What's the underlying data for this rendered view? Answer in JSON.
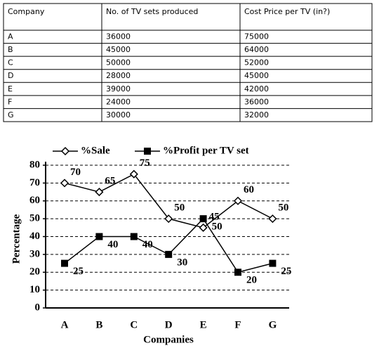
{
  "table": {
    "header": [
      "Company",
      "No. of TV sets produced",
      "Cost Price per TV (in?)"
    ],
    "rows": [
      [
        "A",
        "36000",
        "75000"
      ],
      [
        "B",
        "45000",
        "64000"
      ],
      [
        "C",
        "50000",
        "52000"
      ],
      [
        "D",
        "28000",
        "45000"
      ],
      [
        "E",
        "39000",
        "42000"
      ],
      [
        "F",
        "24000",
        "36000"
      ],
      [
        "G",
        "30000",
        "32000"
      ]
    ]
  },
  "chart_data": {
    "type": "line",
    "x_label": "Companies",
    "y_label": "Percentage",
    "categories": [
      "A",
      "B",
      "C",
      "D",
      "E",
      "F",
      "G"
    ],
    "series": [
      {
        "name": "%Sale",
        "color": "#000000",
        "marker": "diamond",
        "values": [
          70,
          65,
          75,
          50,
          45,
          60,
          50
        ]
      },
      {
        "name": "%Profit per TV set",
        "color": "#000000",
        "marker": "square",
        "values": [
          25,
          40,
          40,
          30,
          50,
          20,
          25
        ]
      }
    ],
    "ylim": [
      0,
      80
    ],
    "yticks": [
      0,
      10,
      20,
      30,
      40,
      50,
      60,
      70,
      80
    ],
    "grid": true
  }
}
